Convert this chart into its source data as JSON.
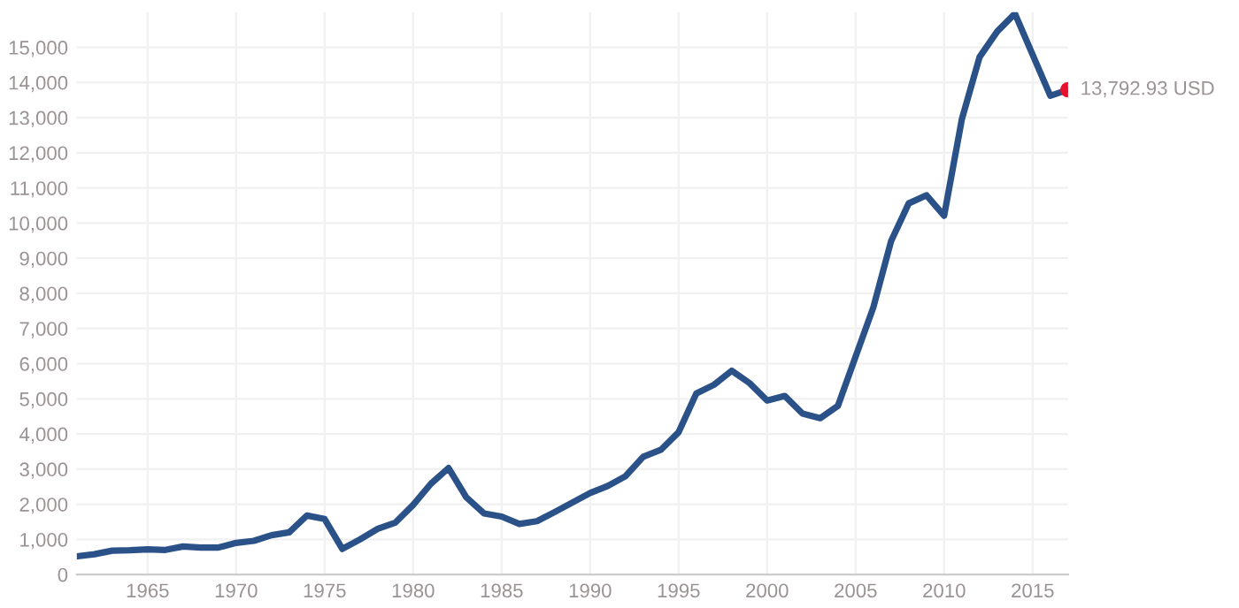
{
  "chart_data": {
    "type": "line",
    "x": [
      1961,
      1962,
      1963,
      1964,
      1965,
      1966,
      1967,
      1968,
      1969,
      1970,
      1971,
      1972,
      1973,
      1974,
      1975,
      1976,
      1977,
      1978,
      1979,
      1980,
      1981,
      1982,
      1983,
      1984,
      1985,
      1986,
      1987,
      1988,
      1989,
      1990,
      1991,
      1992,
      1993,
      1994,
      1995,
      1996,
      1997,
      1998,
      1999,
      2000,
      2001,
      2002,
      2003,
      2004,
      2005,
      2006,
      2007,
      2008,
      2009,
      2010,
      2011,
      2012,
      2013,
      2014,
      2015,
      2016,
      2017
    ],
    "series": [
      {
        "color": "#2b5288",
        "values": [
          520,
          580,
          680,
          690,
          720,
          700,
          800,
          770,
          770,
          900,
          960,
          1120,
          1200,
          1680,
          1580,
          730,
          1000,
          1300,
          1480,
          1980,
          2580,
          3030,
          2200,
          1740,
          1650,
          1440,
          1520,
          1780,
          2050,
          2320,
          2520,
          2800,
          3350,
          3550,
          4050,
          5150,
          5400,
          5800,
          5450,
          4950,
          5080,
          4580,
          4450,
          4800,
          6200,
          7600,
          9480,
          10560,
          10790,
          10210,
          12950,
          14720,
          15450,
          15960,
          14790,
          13620,
          13792.93
        ]
      },
      {
        "type": "scatter",
        "color": "#e8112d",
        "x": [
          2017
        ],
        "values": [
          13792.93
        ]
      }
    ],
    "annotations": [
      {
        "text": "13,792.93 USD",
        "x": 2017,
        "y": 13792.93
      }
    ],
    "xlim": [
      1961,
      2017
    ],
    "xticks": [
      1965,
      1970,
      1975,
      1980,
      1985,
      1990,
      1995,
      2000,
      2005,
      2010,
      2015
    ],
    "ylim": [
      0,
      16000
    ],
    "yticks": [
      0,
      {
        "value": 1000,
        "label": "1,000"
      },
      {
        "value": 2000,
        "label": "2,000"
      },
      {
        "value": 3000,
        "label": "3,000"
      },
      {
        "value": 4000,
        "label": "4,000"
      },
      {
        "value": 5000,
        "label": "5,000"
      },
      {
        "value": 6000,
        "label": "6,000"
      },
      {
        "value": 7000,
        "label": "7,000"
      },
      {
        "value": 8000,
        "label": "8,000"
      },
      {
        "value": 9000,
        "label": "9,000"
      },
      {
        "value": 10000,
        "label": "10,000"
      },
      {
        "value": 11000,
        "label": "11,000"
      },
      {
        "value": 12000,
        "label": "12,000"
      },
      {
        "value": 13000,
        "label": "13,000"
      },
      {
        "value": 14000,
        "label": "14,000"
      },
      {
        "value": 15000,
        "label": "15,000"
      }
    ],
    "grid": true,
    "legend": false
  }
}
